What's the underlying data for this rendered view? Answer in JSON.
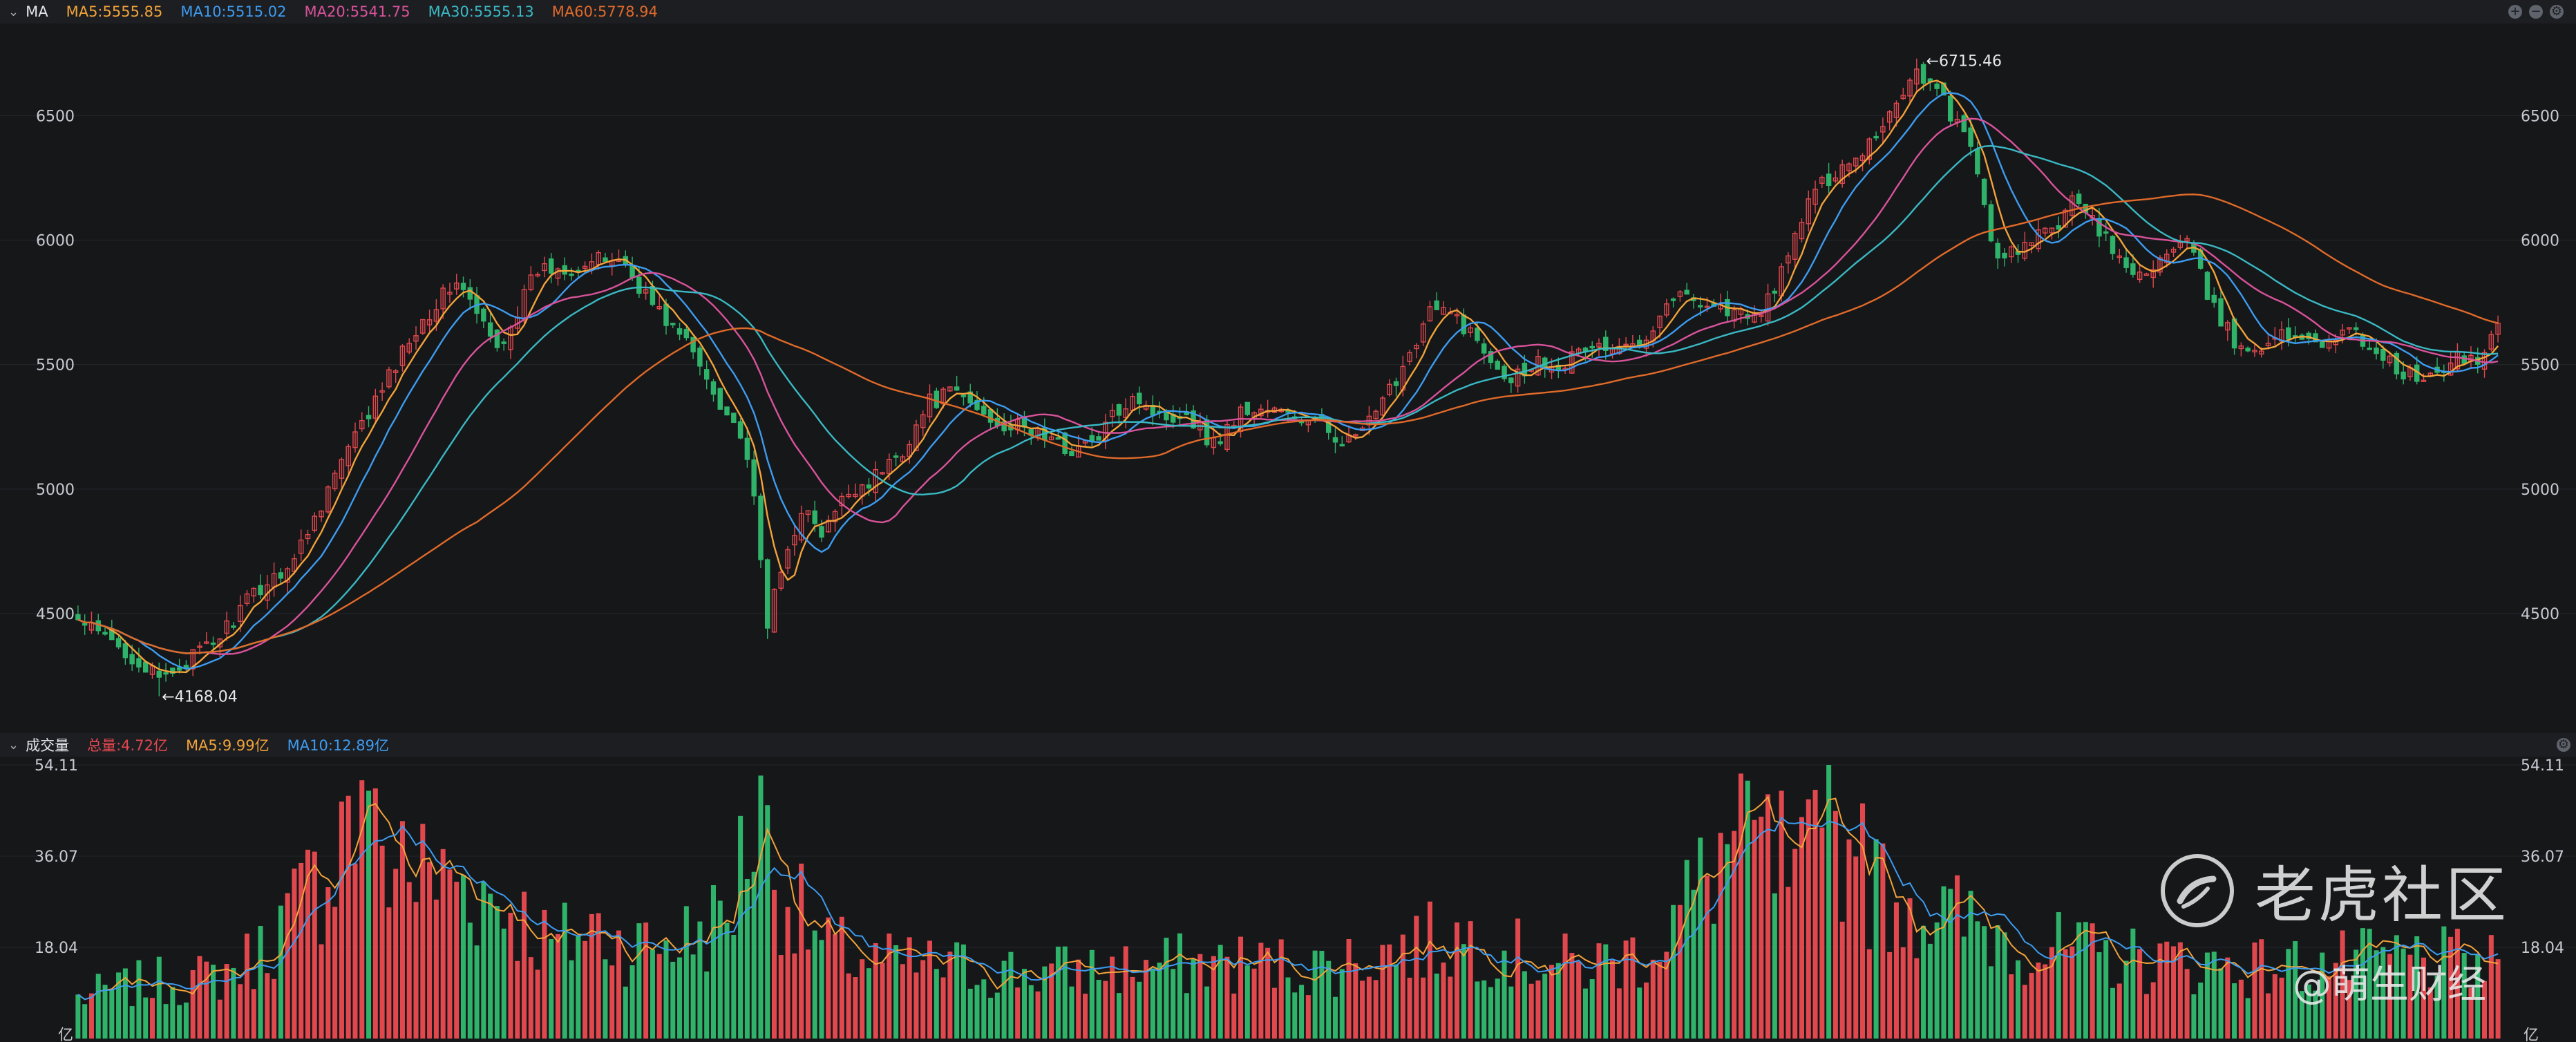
{
  "main_header": {
    "name": "MA",
    "ma5": "MA5:5555.85",
    "ma10": "MA10:5515.02",
    "ma20": "MA20:5541.75",
    "ma30": "MA30:5555.13",
    "ma60": "MA60:5778.94"
  },
  "volume_header": {
    "name": "成交量",
    "total": "总量:4.72亿",
    "ma5": "MA5:9.99亿",
    "ma10": "MA10:12.89亿"
  },
  "colors": {
    "up": "#e0484e",
    "down": "#2fb36a",
    "ma5": "#f2a33a",
    "ma10": "#3d9cf0",
    "ma20": "#d9539b",
    "ma30": "#3ab9c4",
    "ma60": "#e06a2a",
    "background": "#161719",
    "grid": "#24262b"
  },
  "watermark": {
    "brand": "老虎社区",
    "author": "@萌生财经"
  },
  "chart_data": [
    {
      "type": "candlestick",
      "panel": "price",
      "y_ticks": [
        "6500",
        "6000",
        "5500",
        "5000",
        "4500"
      ],
      "y_tick_values": [
        6500,
        6000,
        5500,
        5000,
        4500
      ],
      "ylim": [
        4020,
        6870
      ],
      "annotations": [
        {
          "label": "←6715.46",
          "value": 6715.46,
          "type": "high"
        },
        {
          "label": "←4168.04",
          "value": 4168.04,
          "type": "low"
        }
      ],
      "anchors": [
        [
          0,
          4470
        ],
        [
          8,
          4330
        ],
        [
          12,
          4230
        ],
        [
          16,
          4310
        ],
        [
          20,
          4380
        ],
        [
          26,
          4580
        ],
        [
          32,
          4720
        ],
        [
          38,
          5060
        ],
        [
          44,
          5350
        ],
        [
          50,
          5650
        ],
        [
          56,
          5840
        ],
        [
          62,
          5560
        ],
        [
          68,
          5880
        ],
        [
          74,
          5900
        ],
        [
          80,
          5930
        ],
        [
          86,
          5710
        ],
        [
          90,
          5590
        ],
        [
          94,
          5400
        ],
        [
          98,
          5220
        ],
        [
          100,
          4950
        ],
        [
          102,
          4470
        ],
        [
          104,
          4660
        ],
        [
          107,
          4930
        ],
        [
          110,
          4810
        ],
        [
          114,
          4990
        ],
        [
          118,
          5050
        ],
        [
          122,
          5160
        ],
        [
          126,
          5350
        ],
        [
          130,
          5390
        ],
        [
          134,
          5300
        ],
        [
          138,
          5250
        ],
        [
          142,
          5230
        ],
        [
          146,
          5160
        ],
        [
          150,
          5180
        ],
        [
          156,
          5390
        ],
        [
          160,
          5290
        ],
        [
          164,
          5310
        ],
        [
          168,
          5180
        ],
        [
          172,
          5310
        ],
        [
          176,
          5320
        ],
        [
          180,
          5290
        ],
        [
          184,
          5250
        ],
        [
          188,
          5190
        ],
        [
          192,
          5290
        ],
        [
          196,
          5500
        ],
        [
          200,
          5720
        ],
        [
          204,
          5690
        ],
        [
          208,
          5560
        ],
        [
          212,
          5450
        ],
        [
          216,
          5520
        ],
        [
          220,
          5510
        ],
        [
          224,
          5580
        ],
        [
          228,
          5550
        ],
        [
          232,
          5630
        ],
        [
          236,
          5780
        ],
        [
          240,
          5760
        ],
        [
          244,
          5720
        ],
        [
          248,
          5680
        ],
        [
          252,
          5860
        ],
        [
          256,
          6160
        ],
        [
          260,
          6280
        ],
        [
          264,
          6360
        ],
        [
          268,
          6510
        ],
        [
          272,
          6690
        ],
        [
          276,
          6560
        ],
        [
          280,
          6360
        ],
        [
          282,
          6150
        ],
        [
          284,
          5900
        ],
        [
          288,
          5980
        ],
        [
          292,
          6040
        ],
        [
          296,
          6180
        ],
        [
          300,
          6000
        ],
        [
          304,
          5850
        ],
        [
          308,
          5920
        ],
        [
          312,
          5990
        ],
        [
          316,
          5720
        ],
        [
          320,
          5550
        ],
        [
          324,
          5600
        ],
        [
          328,
          5620
        ],
        [
          332,
          5600
        ],
        [
          336,
          5630
        ],
        [
          340,
          5560
        ],
        [
          344,
          5460
        ],
        [
          348,
          5440
        ],
        [
          352,
          5520
        ],
        [
          356,
          5530
        ],
        [
          358,
          5700
        ]
      ],
      "count": 359,
      "series": [
        {
          "name": "MA5",
          "period": 5
        },
        {
          "name": "MA10",
          "period": 10
        },
        {
          "name": "MA20",
          "period": 20
        },
        {
          "name": "MA30",
          "period": 30
        },
        {
          "name": "MA60",
          "period": 60
        }
      ]
    },
    {
      "type": "bar",
      "panel": "volume",
      "unit": "亿",
      "y_ticks_left": [
        "54.11",
        "36.07",
        "18.04",
        "亿"
      ],
      "y_ticks_right": [
        "54.11",
        "36.07",
        "18.04",
        "亿"
      ],
      "y_tick_values": [
        54.11,
        36.07,
        18.04,
        0
      ],
      "ylim": [
        0,
        54.11
      ],
      "anchors": [
        [
          0,
          8
        ],
        [
          10,
          11
        ],
        [
          20,
          12
        ],
        [
          26,
          16
        ],
        [
          30,
          22
        ],
        [
          36,
          32
        ],
        [
          40,
          44
        ],
        [
          44,
          37
        ],
        [
          48,
          34
        ],
        [
          52,
          32
        ],
        [
          58,
          30
        ],
        [
          64,
          26
        ],
        [
          70,
          18
        ],
        [
          76,
          22
        ],
        [
          82,
          18
        ],
        [
          90,
          20
        ],
        [
          96,
          24
        ],
        [
          100,
          44
        ],
        [
          104,
          30
        ],
        [
          110,
          18
        ],
        [
          118,
          15
        ],
        [
          130,
          14
        ],
        [
          142,
          13
        ],
        [
          156,
          14
        ],
        [
          170,
          15
        ],
        [
          184,
          14
        ],
        [
          196,
          18
        ],
        [
          206,
          20
        ],
        [
          214,
          16
        ],
        [
          222,
          14
        ],
        [
          232,
          17
        ],
        [
          240,
          30
        ],
        [
          246,
          42
        ],
        [
          250,
          36
        ],
        [
          254,
          28
        ],
        [
          258,
          40
        ],
        [
          262,
          36
        ],
        [
          266,
          30
        ],
        [
          270,
          28
        ],
        [
          276,
          24
        ],
        [
          282,
          22
        ],
        [
          290,
          18
        ],
        [
          300,
          16
        ],
        [
          312,
          15
        ],
        [
          324,
          14
        ],
        [
          336,
          15
        ],
        [
          346,
          16
        ],
        [
          358,
          14
        ]
      ],
      "spikes": [
        [
          40,
          48
        ],
        [
          43,
          49
        ],
        [
          48,
          43
        ],
        [
          56,
          31
        ],
        [
          101,
          52
        ],
        [
          247,
          51
        ],
        [
          252,
          49
        ],
        [
          259,
          55
        ],
        [
          263,
          36
        ]
      ],
      "series": [
        {
          "name": "MA5",
          "period": 5
        },
        {
          "name": "MA10",
          "period": 10
        }
      ]
    }
  ]
}
